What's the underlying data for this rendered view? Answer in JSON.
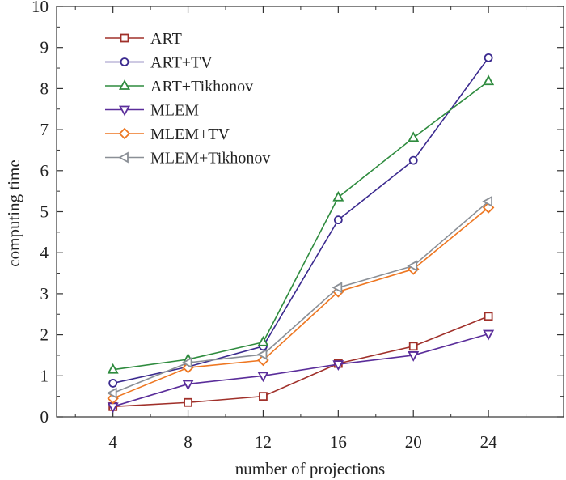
{
  "chart_data": {
    "type": "line",
    "title": "",
    "xlabel": "number of projections",
    "ylabel": "computing time",
    "x": [
      4,
      8,
      12,
      16,
      20,
      24
    ],
    "xlim": [
      1,
      28
    ],
    "ylim": [
      0,
      10
    ],
    "xticks": [
      4,
      8,
      12,
      16,
      20,
      24
    ],
    "yticks": [
      0,
      1,
      2,
      3,
      4,
      5,
      6,
      7,
      8,
      9,
      10
    ],
    "legend_position": "top-left",
    "series": [
      {
        "name": "ART",
        "color": "#a0302a",
        "marker": "square",
        "values": [
          0.25,
          0.35,
          0.5,
          1.3,
          1.72,
          2.45
        ]
      },
      {
        "name": "ART+TV",
        "color": "#3b2a8f",
        "marker": "circle",
        "values": [
          0.82,
          1.22,
          1.72,
          4.8,
          6.25,
          8.75
        ]
      },
      {
        "name": "ART+Tikhonov",
        "color": "#2e8b3e",
        "marker": "triangle-up",
        "values": [
          1.15,
          1.4,
          1.82,
          5.35,
          6.8,
          8.18
        ]
      },
      {
        "name": "MLEM",
        "color": "#5a2d9a",
        "marker": "triangle-down",
        "values": [
          0.25,
          0.8,
          1.0,
          1.28,
          1.5,
          2.02
        ]
      },
      {
        "name": "MLEM+TV",
        "color": "#ee7722",
        "marker": "diamond",
        "values": [
          0.45,
          1.2,
          1.38,
          3.05,
          3.6,
          5.1
        ]
      },
      {
        "name": "MLEM+Tikhonov",
        "color": "#8a8f96",
        "marker": "triangle-left",
        "values": [
          0.58,
          1.32,
          1.52,
          3.15,
          3.68,
          5.25
        ]
      }
    ]
  }
}
